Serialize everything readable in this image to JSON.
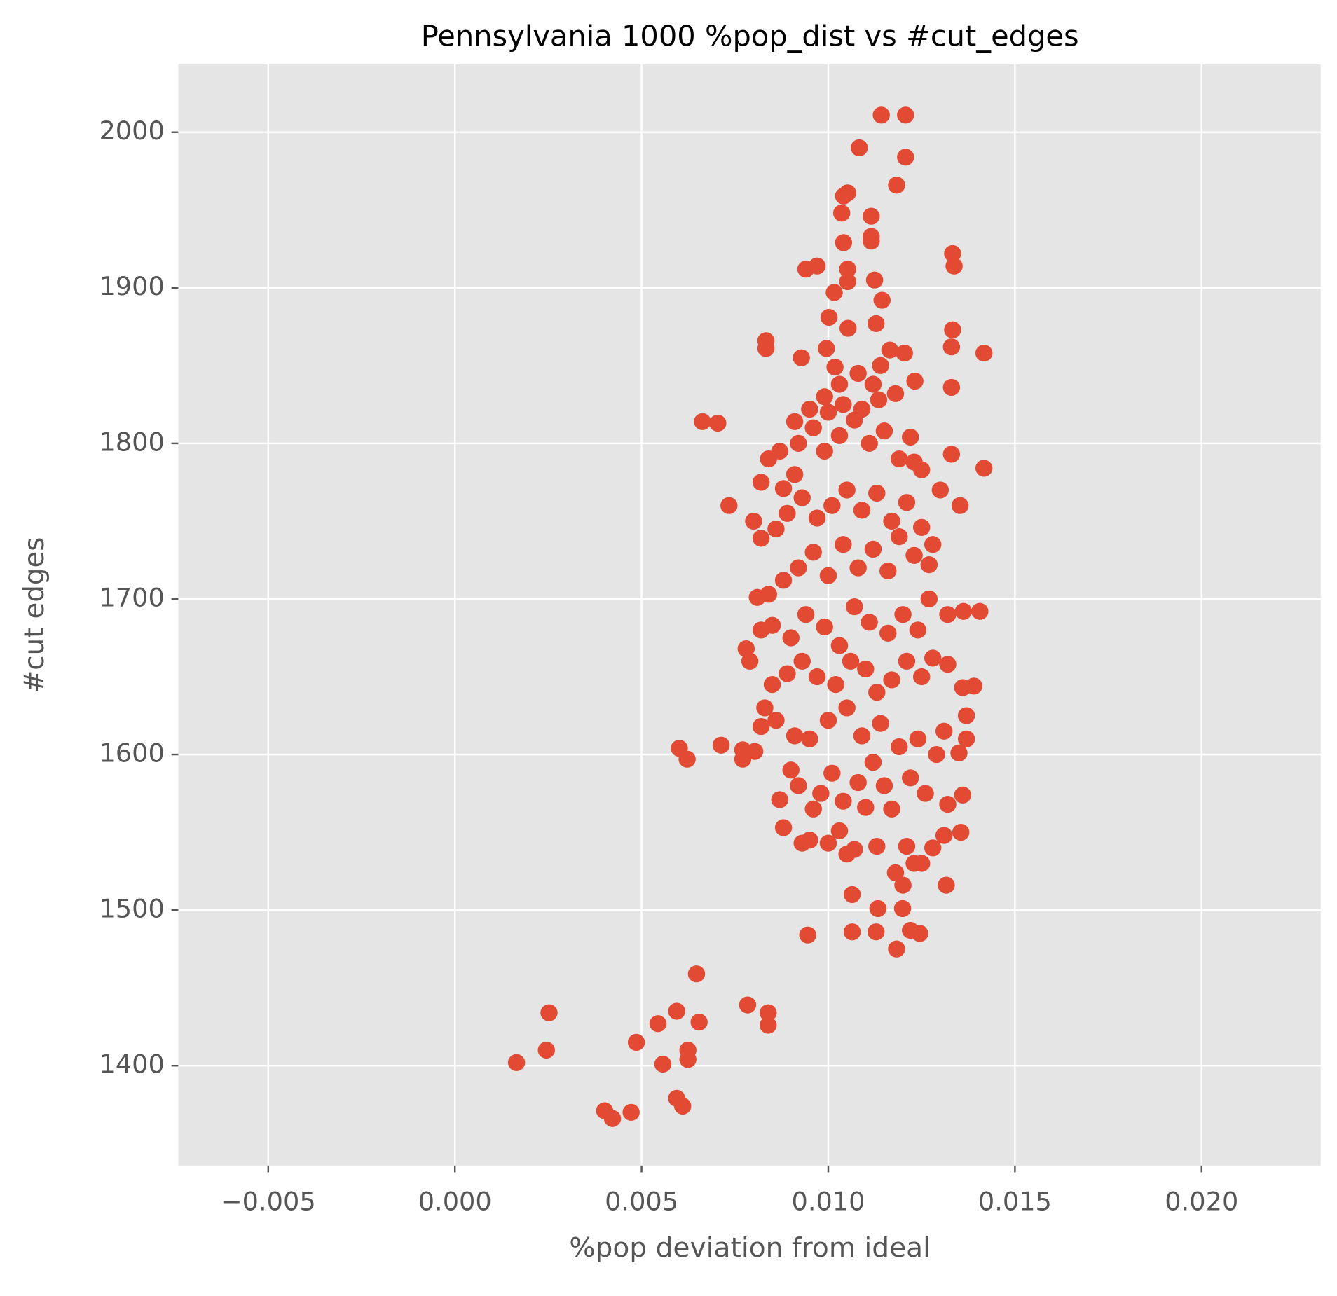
{
  "chart_data": {
    "type": "scatter",
    "title": "Pennsylvania 1000 %pop_dist vs #cut_edges",
    "x_label": "%pop deviation from ideal",
    "y_label": "#cut edges",
    "color": "#e24a33",
    "grid": true,
    "xlim": [
      -0.00741,
      0.02319
    ],
    "ylim": [
      1335.8,
      2043.6
    ],
    "xticks": [
      {
        "value": -0.005,
        "label": "−0.005"
      },
      {
        "value": 0,
        "label": "0.000"
      },
      {
        "value": 0.005,
        "label": "0.005"
      },
      {
        "value": 0.01,
        "label": "0.010"
      },
      {
        "value": 0.015,
        "label": "0.015"
      },
      {
        "value": 0.02,
        "label": "0.020"
      }
    ],
    "yticks": [
      1400,
      1500,
      1600,
      1700,
      1800,
      1900,
      2000
    ],
    "x": [
      0.00165,
      0.00252,
      0.00245,
      0.00401,
      0.00422,
      0.00472,
      0.00486,
      0.00544,
      0.00557,
      0.00594,
      0.00594,
      0.0061,
      0.00624,
      0.00624,
      0.00654,
      0.00647,
      0.00784,
      0.00839,
      0.00839,
      0.00601,
      0.00622,
      0.00713,
      0.00771,
      0.00771,
      0.00803,
      0.00663,
      0.00704,
      0.00734,
      0.00945,
      0.01064,
      0.01064,
      0.01133,
      0.01128,
      0.01183,
      0.01199,
      0.0122,
      0.01245,
      0.01316,
      0.01355,
      0.01417,
      0.01417,
      0.0133,
      0.0133,
      0.01333,
      0.01333,
      0.01337,
      0.0133,
      0.01353,
      0.01406,
      0.01362,
      0.01142,
      0.01207,
      0.01207,
      0.01083,
      0.01183,
      0.01041,
      0.01052,
      0.01036,
      0.01115,
      0.01115,
      0.01115,
      0.01041,
      0.0094,
      0.0097,
      0.01052,
      0.01052,
      0.01124,
      0.01016,
      0.01144,
      0.01002,
      0.01053,
      0.01128,
      0.00833,
      0.00833,
      0.00928,
      0.00995,
      0.01165,
      0.01204,
      0.01232,
      0.01135,
      0.01018,
      0.0088,
      0.0093,
      0.0095,
      0.01,
      0.0103,
      0.0105,
      0.0107,
      0.0113,
      0.0118,
      0.012,
      0.0121,
      0.0123,
      0.0125,
      0.0128,
      0.0131,
      0.0136,
      0.0132,
      0.0087,
      0.009,
      0.0092,
      0.0096,
      0.0098,
      0.0101,
      0.0104,
      0.0108,
      0.011,
      0.0112,
      0.0115,
      0.0117,
      0.0122,
      0.0126,
      0.0129,
      0.0135,
      0.0137,
      0.0137,
      0.0131,
      0.0124,
      0.0119,
      0.0114,
      0.0109,
      0.0105,
      0.01,
      0.0095,
      0.0091,
      0.0086,
      0.0082,
      0.0083,
      0.0085,
      0.0089,
      0.0093,
      0.0097,
      0.0102,
      0.0106,
      0.011,
      0.0113,
      0.0117,
      0.0121,
      0.0125,
      0.0128,
      0.0132,
      0.0136,
      0.0139,
      0.0078,
      0.0079,
      0.0082,
      0.0085,
      0.009,
      0.0094,
      0.0099,
      0.0103,
      0.0107,
      0.0111,
      0.0116,
      0.012,
      0.0124,
      0.0127,
      0.0132,
      0.0081,
      0.0084,
      0.0088,
      0.0092,
      0.0096,
      0.01,
      0.0104,
      0.0108,
      0.0112,
      0.0116,
      0.0119,
      0.0123,
      0.0127,
      0.0128,
      0.0082,
      0.008,
      0.0086,
      0.0089,
      0.0093,
      0.0097,
      0.0101,
      0.0105,
      0.0109,
      0.0113,
      0.0117,
      0.0121,
      0.0125,
      0.013,
      0.0082,
      0.0088,
      0.0091,
      0.0084,
      0.0087,
      0.0092,
      0.0096,
      0.0099,
      0.0103,
      0.0107,
      0.0111,
      0.0115,
      0.0119,
      0.0123,
      0.0125,
      0.0091,
      0.0095,
      0.01,
      0.0104,
      0.0109,
      0.0112,
      0.0118,
      0.0122,
      0.0099,
      0.0103,
      0.0108,
      0.0114
    ],
    "values": [
      1402,
      1434,
      1410,
      1371,
      1366,
      1370,
      1415,
      1427,
      1401,
      1435,
      1379,
      1374,
      1410,
      1404,
      1428,
      1459,
      1439,
      1434,
      1426,
      1604,
      1597,
      1606,
      1603,
      1597,
      1602,
      1814,
      1813,
      1760,
      1484,
      1510,
      1486,
      1501,
      1486,
      1475,
      1501,
      1487,
      1485,
      1516,
      1550,
      1784,
      1858,
      1836,
      1862,
      1873,
      1922,
      1914,
      1793,
      1760,
      1692,
      1692,
      2011,
      2011,
      1984,
      1990,
      1966,
      1959,
      1961,
      1948,
      1946,
      1933,
      1930,
      1929,
      1912,
      1914,
      1912,
      1904,
      1905,
      1897,
      1892,
      1881,
      1874,
      1877,
      1866,
      1861,
      1855,
      1861,
      1860,
      1858,
      1840,
      1828,
      1849,
      1553,
      1543,
      1545,
      1543,
      1551,
      1536,
      1539,
      1541,
      1524,
      1516,
      1541,
      1530,
      1530,
      1540,
      1548,
      1574,
      1568,
      1571,
      1590,
      1580,
      1565,
      1575,
      1588,
      1570,
      1582,
      1566,
      1595,
      1580,
      1565,
      1585,
      1575,
      1600,
      1601,
      1610,
      1625,
      1615,
      1610,
      1605,
      1620,
      1612,
      1630,
      1622,
      1610,
      1612,
      1622,
      1618,
      1630,
      1645,
      1652,
      1660,
      1650,
      1645,
      1660,
      1655,
      1640,
      1648,
      1660,
      1650,
      1662,
      1658,
      1643,
      1644,
      1668,
      1660,
      1680,
      1683,
      1675,
      1690,
      1682,
      1670,
      1695,
      1685,
      1678,
      1690,
      1680,
      1700,
      1690,
      1701,
      1703,
      1712,
      1720,
      1730,
      1715,
      1735,
      1720,
      1732,
      1718,
      1740,
      1728,
      1722,
      1735,
      1739,
      1750,
      1745,
      1755,
      1765,
      1752,
      1760,
      1770,
      1757,
      1768,
      1750,
      1762,
      1746,
      1770,
      1775,
      1771,
      1780,
      1790,
      1795,
      1800,
      1810,
      1795,
      1805,
      1815,
      1800,
      1808,
      1790,
      1788,
      1783,
      1814,
      1822,
      1820,
      1825,
      1822,
      1838,
      1832,
      1804,
      1830,
      1838,
      1845,
      1850
    ]
  }
}
